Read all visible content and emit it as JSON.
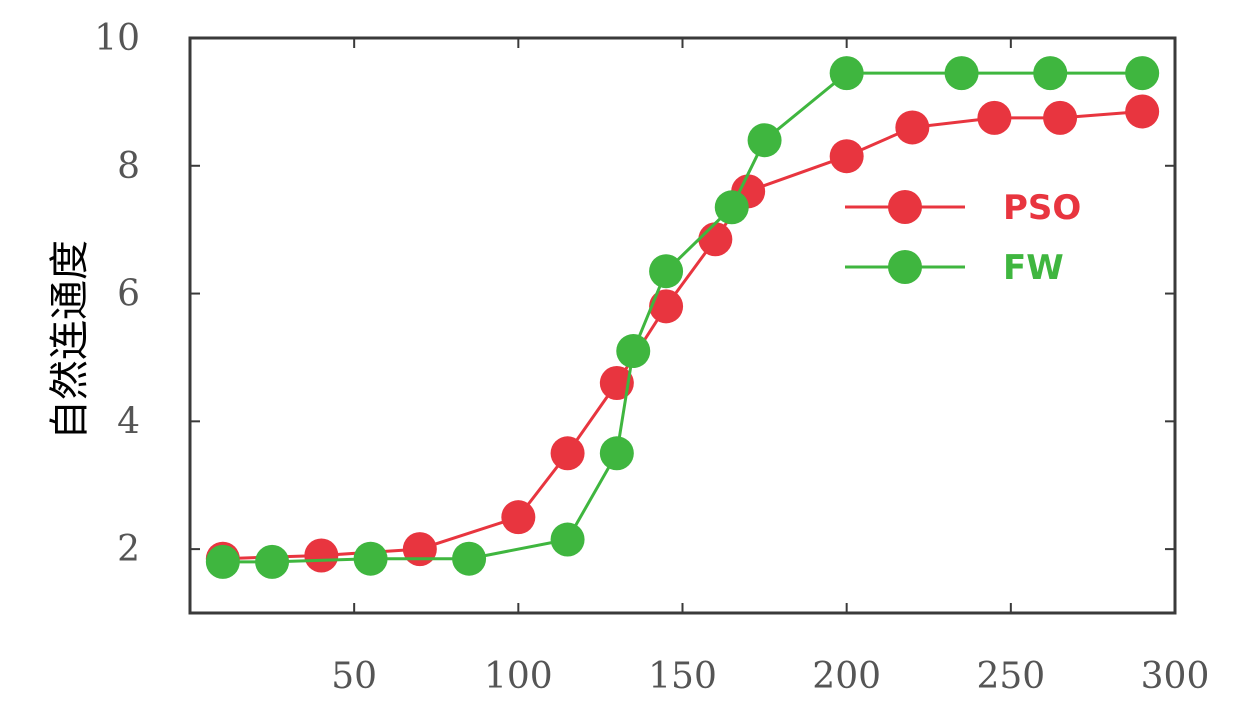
{
  "chart_data": {
    "type": "line",
    "title": "",
    "xlabel": "",
    "ylabel": "自然连通度",
    "xlim": [
      0,
      300
    ],
    "ylim": [
      1,
      10
    ],
    "xticks": [
      50,
      100,
      150,
      200,
      250,
      300
    ],
    "yticks": [
      2,
      4,
      6,
      8,
      10
    ],
    "grid": false,
    "legend_position": "right",
    "series": [
      {
        "name": "PSO",
        "color": "#e8353f",
        "x": [
          10,
          40,
          70,
          100,
          115,
          130,
          145,
          160,
          170,
          200,
          220,
          245,
          265,
          290
        ],
        "y": [
          1.85,
          1.9,
          2.0,
          2.5,
          3.5,
          4.6,
          5.8,
          6.85,
          7.6,
          8.15,
          8.6,
          8.75,
          8.75,
          8.85
        ]
      },
      {
        "name": "FW",
        "color": "#3fb63f",
        "x": [
          10,
          25,
          55,
          85,
          115,
          130,
          135,
          145,
          165,
          175,
          200,
          235,
          262,
          290
        ],
        "y": [
          1.8,
          1.8,
          1.85,
          1.85,
          2.15,
          3.5,
          5.1,
          6.35,
          7.35,
          8.4,
          9.45,
          9.45,
          9.45,
          9.45
        ]
      }
    ]
  }
}
